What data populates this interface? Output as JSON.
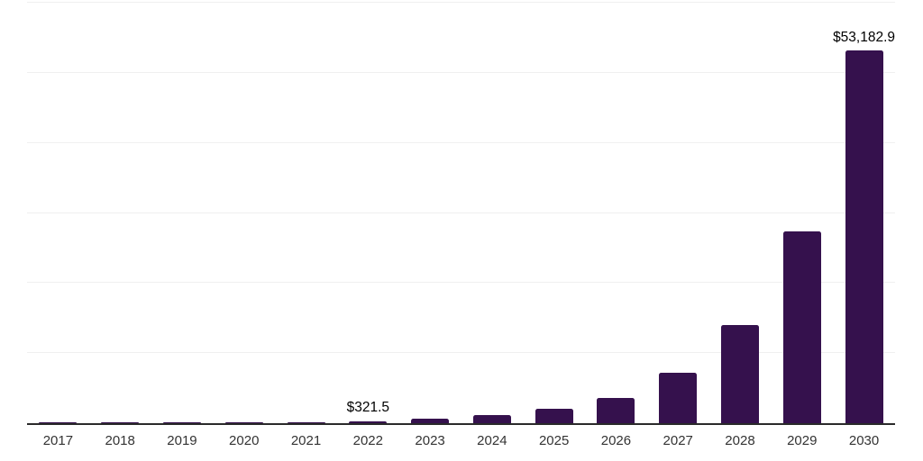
{
  "chart_data": {
    "type": "bar",
    "title": "",
    "xlabel": "",
    "ylabel": "",
    "categories": [
      "2017",
      "2018",
      "2019",
      "2020",
      "2021",
      "2022",
      "2023",
      "2024",
      "2025",
      "2026",
      "2027",
      "2028",
      "2029",
      "2030"
    ],
    "values": [
      30,
      45,
      70,
      110,
      180,
      321.5,
      700,
      1200,
      2050,
      3650,
      7200,
      14000,
      27400,
      53182.9
    ],
    "point_labels": {
      "2022": "$321.5",
      "2030": "$53,182.9"
    },
    "ylim": [
      0,
      60000
    ],
    "gridline_interval": 10000,
    "grid": "horizontal",
    "legend": "none",
    "y_tick_labels_visible": false,
    "colors": {
      "bar": "#35114D",
      "gridline": "#f0f0f0",
      "axis_line": "#2a2a2a",
      "value_label": "#000000",
      "tick_label": "#333333",
      "background": "#ffffff"
    }
  }
}
